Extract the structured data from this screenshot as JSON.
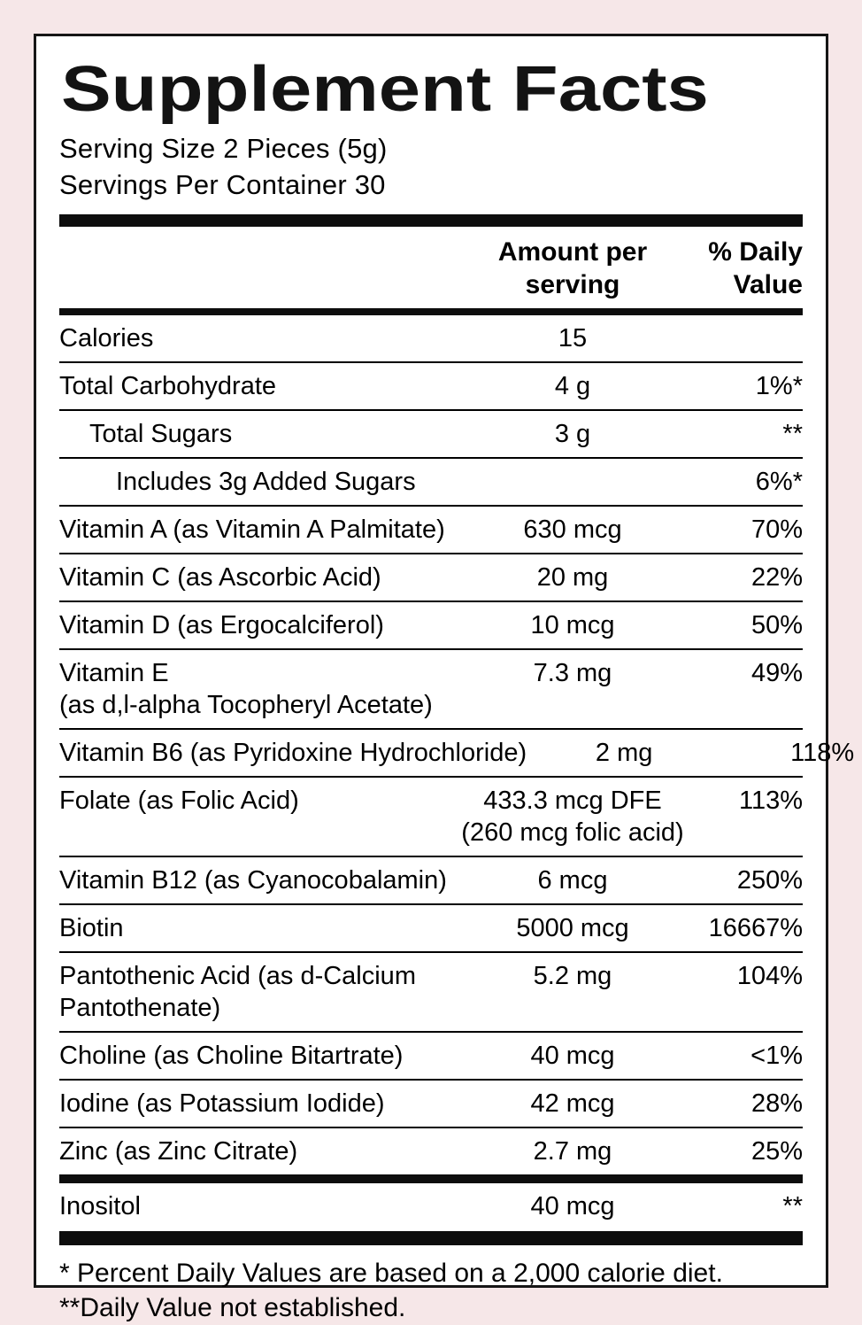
{
  "colors": {
    "background": "#f6e7e8",
    "panel": "#ffffff",
    "text": "#000000",
    "border": "#161616"
  },
  "label": {
    "title": "Supplement Facts",
    "serving_size": "Serving Size 2 Pieces (5g)",
    "servings_per_container": "Servings Per Container 30",
    "header": {
      "amount_line1": "Amount per",
      "amount_line2": "serving",
      "dv_line1": "% Daily",
      "dv_line2": "Value"
    },
    "rows": [
      {
        "sep": "none",
        "indent": 0,
        "name": "Calories",
        "amount": "15",
        "dv": ""
      },
      {
        "sep": "thin",
        "indent": 0,
        "name": "Total Carbohydrate",
        "amount": "4 g",
        "dv": "1%*"
      },
      {
        "sep": "thin",
        "indent": 1,
        "name": "Total Sugars",
        "amount": "3 g",
        "dv": "**"
      },
      {
        "sep": "thin",
        "indent": 2,
        "name": "Includes 3g Added Sugars",
        "amount": "",
        "dv": "6%*"
      },
      {
        "sep": "thin",
        "indent": 0,
        "name": "Vitamin A (as Vitamin A Palmitate)",
        "amount": "630 mcg",
        "dv": "70%"
      },
      {
        "sep": "thin",
        "indent": 0,
        "name": "Vitamin C (as Ascorbic Acid)",
        "amount": "20 mg",
        "dv": "22%"
      },
      {
        "sep": "thin",
        "indent": 0,
        "name": "Vitamin D (as Ergocalciferol)",
        "amount": "10 mcg",
        "dv": "50%"
      },
      {
        "sep": "thin",
        "indent": 0,
        "name": "Vitamin E",
        "name2": "(as d,l-alpha Tocopheryl Acetate)",
        "amount": "7.3 mg",
        "dv": "49%"
      },
      {
        "sep": "thin",
        "indent": 0,
        "name": "Vitamin B6 (as Pyridoxine Hydrochloride)",
        "amount": "2 mg",
        "dv": "118%"
      },
      {
        "sep": "thin",
        "indent": 0,
        "name": "Folate (as Folic Acid)",
        "amount": "433.3 mcg DFE",
        "amount2": "(260 mcg folic acid)",
        "dv": "113%"
      },
      {
        "sep": "thin",
        "indent": 0,
        "name": "Vitamin B12 (as Cyanocobalamin)",
        "amount": "6 mcg",
        "dv": "250%"
      },
      {
        "sep": "thin",
        "indent": 0,
        "name": "Biotin",
        "amount": "5000 mcg",
        "dv": "16667%"
      },
      {
        "sep": "thin",
        "indent": 0,
        "name": "Pantothenic Acid (as d-Calcium",
        "name2": "Pantothenate)",
        "amount": "5.2 mg",
        "dv": "104%"
      },
      {
        "sep": "thin",
        "indent": 0,
        "name": "Choline (as Choline Bitartrate)",
        "amount": "40 mcg",
        "dv": "<1%"
      },
      {
        "sep": "thin",
        "indent": 0,
        "name": "Iodine (as Potassium Iodide)",
        "amount": "42 mcg",
        "dv": "28%"
      },
      {
        "sep": "thin",
        "indent": 0,
        "name": "Zinc (as Zinc Citrate)",
        "amount": "2.7 mg",
        "dv": "25%"
      },
      {
        "sep": "thick",
        "indent": 0,
        "name": "Inositol",
        "amount": "40 mcg",
        "dv": "**"
      }
    ],
    "footnotes": [
      "* Percent Daily Values are based on a 2,000 calorie diet.",
      "**Daily Value not established."
    ]
  }
}
